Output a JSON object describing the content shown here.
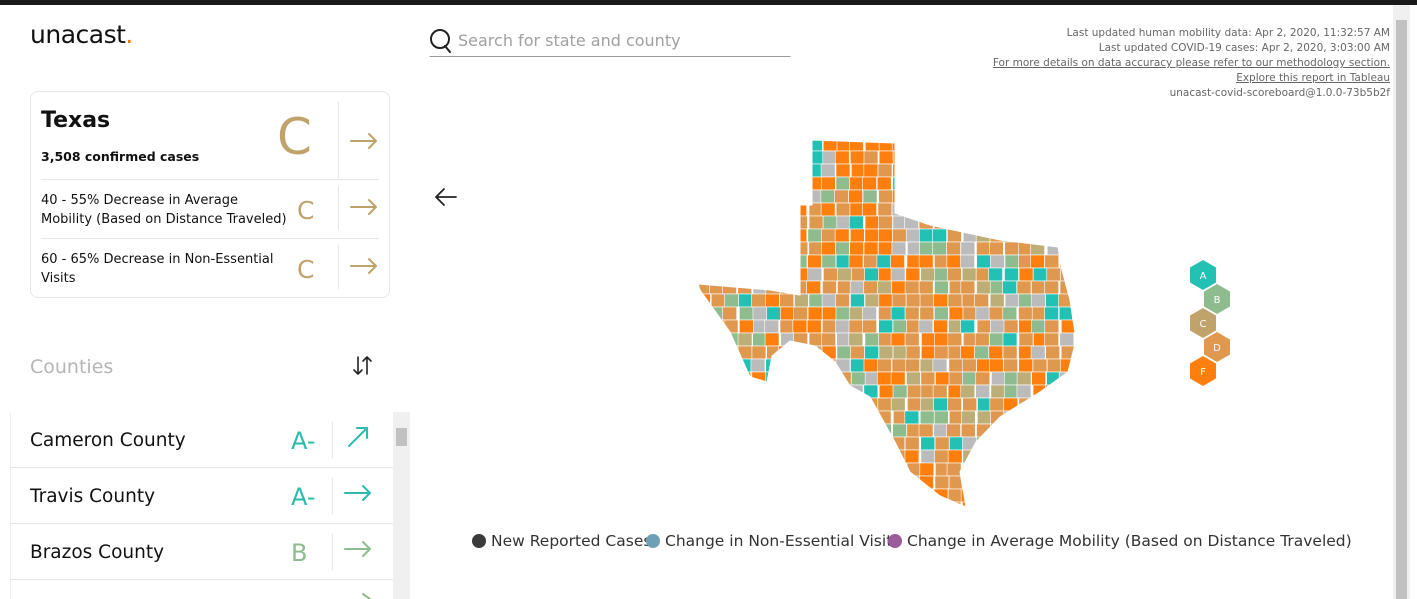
{
  "header": {
    "logo": "unacast",
    "logo_dot": "."
  },
  "search": {
    "placeholder": "Search for state and county"
  },
  "info": {
    "lines": [
      "Last updated human mobility data: Apr 2, 2020, 11:32:57 AM",
      "Last updated COVID-19 cases: Apr 2, 2020, 3:03:00 AM",
      "For more details on data accuracy please refer to our methodology section.",
      "Explore this report in Tableau",
      "unacast-covid-scoreboard@1.0.0-73b5b2f"
    ]
  },
  "state_card": {
    "name": "Texas",
    "cases": "3,508 confirmed cases",
    "grade": "C",
    "metrics": [
      {
        "label": "40 - 55% Decrease in Average Mobility (Based on Distance Traveled)",
        "grade": "C"
      },
      {
        "label": "60 - 65% Decrease in Non-Essential Visits",
        "grade": "C"
      }
    ]
  },
  "counties": {
    "title": "Counties",
    "items": [
      {
        "name": "Cameron County",
        "grade": "A-"
      },
      {
        "name": "Travis County",
        "grade": "A-"
      },
      {
        "name": "Brazos County",
        "grade": "B"
      }
    ]
  },
  "grade_scale": [
    "A",
    "B",
    "C",
    "D",
    "F"
  ],
  "legend": {
    "items": [
      "New Reported Cases",
      "Change in Non-Essential Visits",
      "Change in Average Mobility (Based on Distance Traveled)"
    ]
  }
}
